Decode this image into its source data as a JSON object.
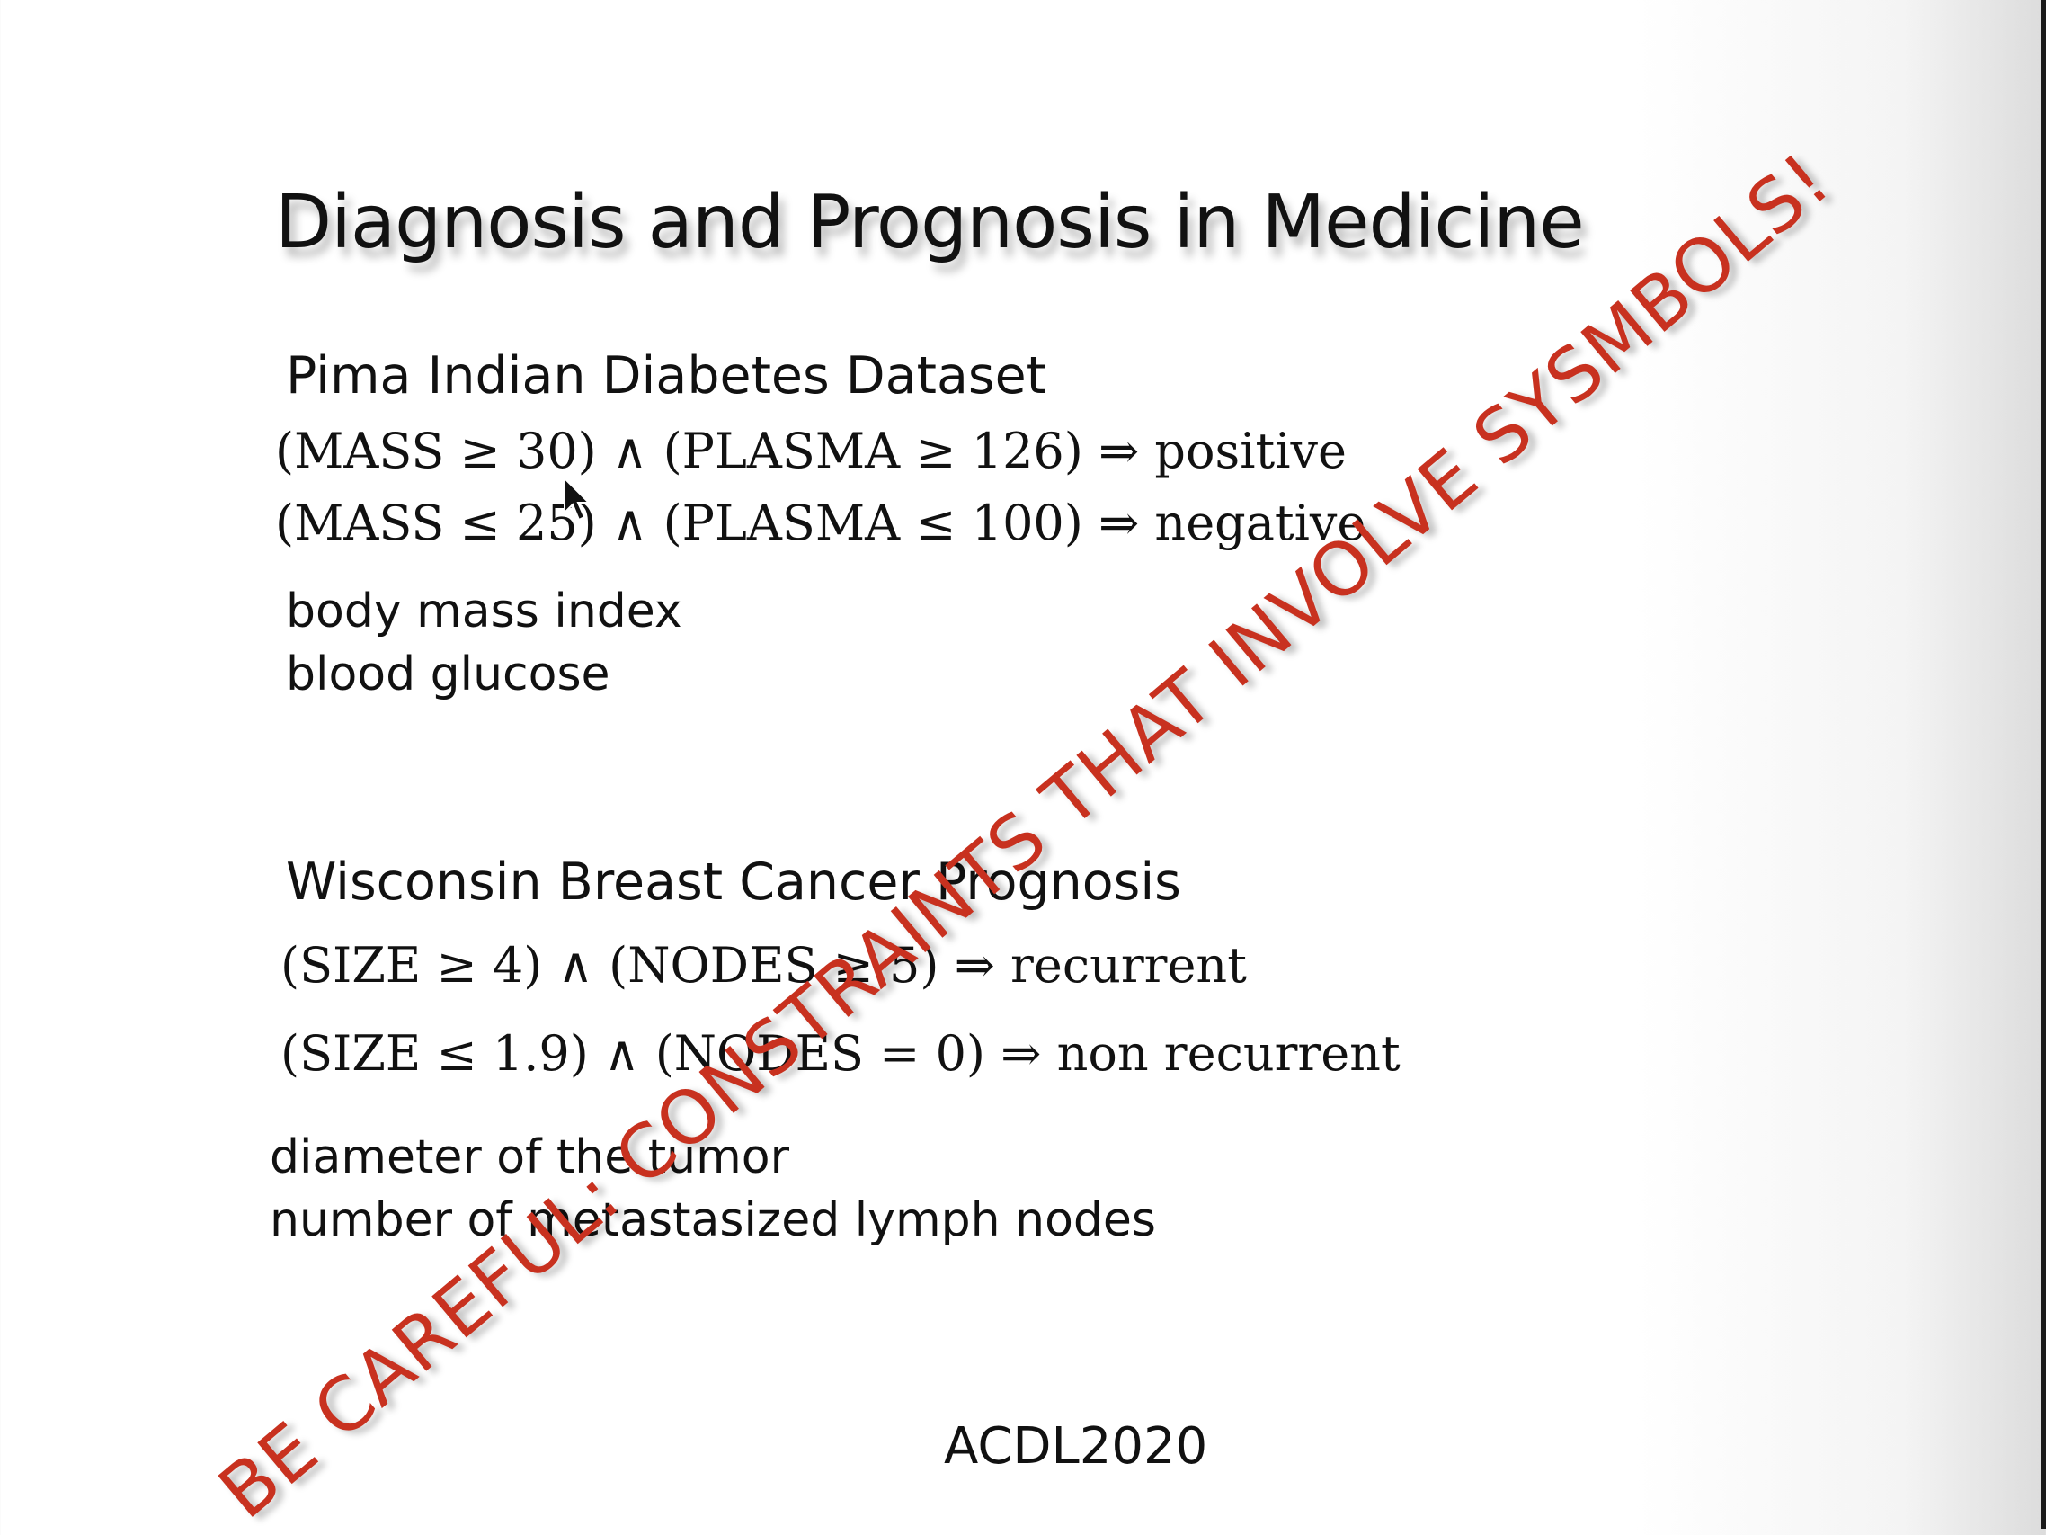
{
  "slide": {
    "title": "Diagnosis and Prognosis in Medicine",
    "pima": {
      "heading": "Pima Indian Diabetes Dataset",
      "rule1": "(MASS ≥ 30) ∧ (PLASMA ≥ 126) ⇒ positive",
      "rule2": "(MASS ≤ 25) ∧ (PLASMA ≤ 100) ⇒ negative",
      "note1": "body mass index",
      "note2": "blood glucose"
    },
    "wisconsin": {
      "heading": "Wisconsin Breast Cancer Prognosis",
      "rule1": "(SIZE ≥ 4) ∧ (NODES ≥ 5)   ⇒   recurrent",
      "rule2": "(SIZE ≤ 1.9) ∧ (NODES = 0)   ⇒   non recurrent",
      "note1": "diameter of the tumor",
      "note2": "number of metastasized lymph nodes"
    },
    "watermark": "BE CAREFUL: CONSTRAINTS THAT INVOLVE SYSMBOLS!",
    "footer": "ACDL2020"
  },
  "colors": {
    "watermark": "#c8311f",
    "text": "#111111"
  },
  "icons": {
    "cursor": "mouse-pointer-icon"
  }
}
